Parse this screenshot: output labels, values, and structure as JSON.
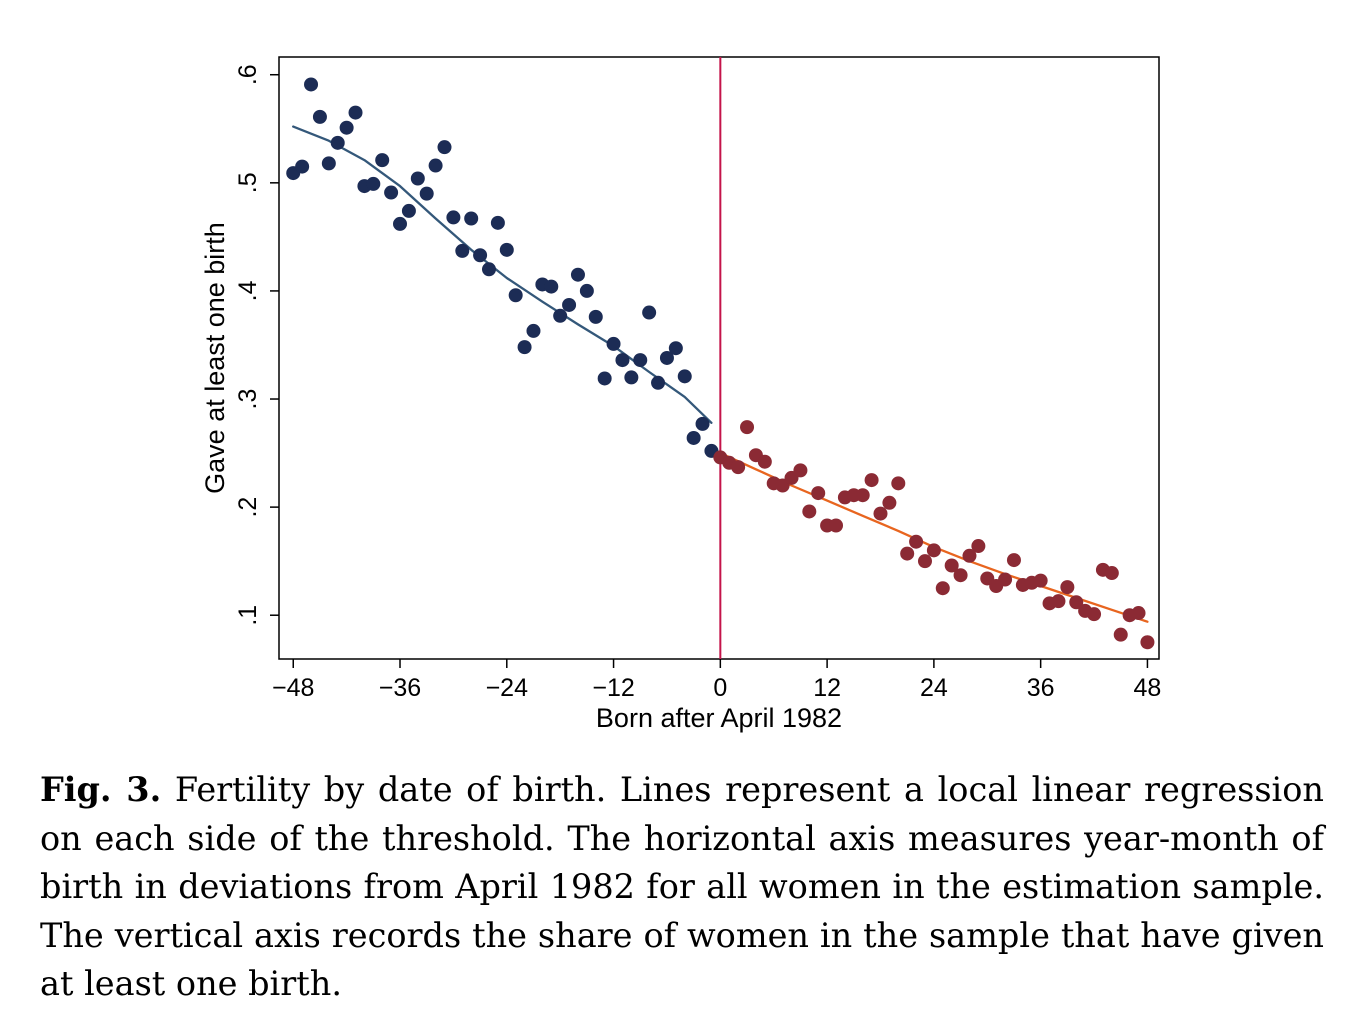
{
  "caption": {
    "label": "Fig. 3.",
    "text": "Fertility by date of birth. Lines represent a local linear regression on each side of the threshold. The horizontal axis measures year-month of birth in deviations from April 1982 for all women in the estimation sample. The vertical axis records the share of women in the sample that have given at least one birth."
  },
  "chart_data": {
    "type": "scatter",
    "xlabel": "Born after April 1982",
    "ylabel": "Gave at least one birth",
    "xlim": [
      -49.6,
      49.3
    ],
    "ylim": [
      0.0595,
      0.6164
    ],
    "x_ticks": [
      -48,
      -36,
      -24,
      -12,
      0,
      12,
      24,
      36,
      48
    ],
    "x_tick_labels": [
      "−48",
      "−36",
      "−24",
      "−12",
      "0",
      "12",
      "24",
      "36",
      "48"
    ],
    "y_ticks": [
      0.1,
      0.2,
      0.3,
      0.4,
      0.5,
      0.6
    ],
    "y_tick_labels": [
      ".1",
      ".2",
      ".3",
      ".4",
      ".5",
      ".6"
    ],
    "grid": false,
    "legend": "none",
    "threshold_x": 0,
    "colors": {
      "before_points": "#1c2c55",
      "before_line": "#34587a",
      "after_points": "#8b2a34",
      "after_line": "#e8651f",
      "threshold": "#c4144a"
    },
    "series": [
      {
        "role": "before",
        "x": [
          -48,
          -47,
          -46,
          -45,
          -44,
          -43,
          -42,
          -41,
          -40,
          -39,
          -38,
          -37,
          -36,
          -35,
          -34,
          -33,
          -32,
          -31,
          -30,
          -29,
          -28,
          -27,
          -26,
          -25,
          -24,
          -23,
          -22,
          -21,
          -20,
          -19,
          -18,
          -17,
          -16,
          -15,
          -14,
          -13,
          -12,
          -11,
          -10,
          -9,
          -8,
          -7,
          -6,
          -5,
          -4,
          -3,
          -2,
          -1
        ],
        "y": [
          0.509,
          0.515,
          0.591,
          0.561,
          0.518,
          0.537,
          0.551,
          0.565,
          0.497,
          0.499,
          0.521,
          0.491,
          0.462,
          0.474,
          0.504,
          0.49,
          0.516,
          0.533,
          0.468,
          0.437,
          0.467,
          0.433,
          0.42,
          0.463,
          0.438,
          0.396,
          0.348,
          0.363,
          0.406,
          0.404,
          0.377,
          0.387,
          0.415,
          0.4,
          0.376,
          0.319,
          0.351,
          0.336,
          0.32,
          0.336,
          0.38,
          0.315,
          0.338,
          0.347,
          0.321,
          0.264,
          0.277,
          0.252
        ]
      },
      {
        "role": "after",
        "x": [
          0,
          1,
          2,
          3,
          4,
          5,
          6,
          7,
          8,
          9,
          10,
          11,
          12,
          13,
          14,
          15,
          16,
          17,
          18,
          19,
          20,
          21,
          22,
          23,
          24,
          25,
          26,
          27,
          28,
          29,
          30,
          31,
          32,
          33,
          34,
          35,
          36,
          37,
          38,
          39,
          40,
          41,
          42,
          43,
          44,
          45,
          46,
          47,
          48
        ],
        "y": [
          0.246,
          0.241,
          0.237,
          0.274,
          0.248,
          0.242,
          0.222,
          0.22,
          0.227,
          0.234,
          0.196,
          0.213,
          0.183,
          0.183,
          0.209,
          0.211,
          0.211,
          0.225,
          0.194,
          0.204,
          0.222,
          0.157,
          0.168,
          0.15,
          0.16,
          0.125,
          0.146,
          0.137,
          0.155,
          0.164,
          0.134,
          0.127,
          0.133,
          0.151,
          0.128,
          0.13,
          0.132,
          0.111,
          0.113,
          0.126,
          0.112,
          0.104,
          0.101,
          0.142,
          0.139,
          0.082,
          0.1,
          0.102,
          0.075
        ]
      }
    ],
    "fit_lines": [
      {
        "side": "before",
        "x": [
          -48,
          -44,
          -40,
          -36,
          -32,
          -28,
          -24,
          -20,
          -16,
          -12,
          -8,
          -4,
          -1
        ],
        "y": [
          0.552,
          0.539,
          0.521,
          0.497,
          0.467,
          0.438,
          0.412,
          0.39,
          0.369,
          0.349,
          0.325,
          0.302,
          0.278
        ]
      },
      {
        "side": "after",
        "x": [
          0,
          4,
          8,
          12,
          16,
          20,
          24,
          28,
          32,
          36,
          40,
          44,
          48
        ],
        "y": [
          0.25,
          0.235,
          0.22,
          0.206,
          0.192,
          0.178,
          0.163,
          0.15,
          0.138,
          0.127,
          0.116,
          0.105,
          0.094
        ]
      }
    ]
  }
}
